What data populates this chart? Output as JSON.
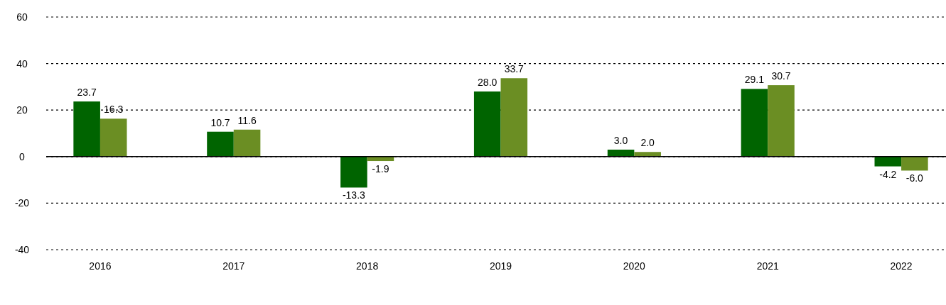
{
  "chart_data": {
    "type": "bar",
    "categories": [
      "2016",
      "2017",
      "2018",
      "2019",
      "2020",
      "2021",
      "2022"
    ],
    "series": [
      {
        "color": "#006400",
        "values": [
          23.7,
          10.7,
          -13.3,
          28.0,
          3.0,
          29.1,
          -4.2
        ],
        "value_labels": [
          "23.7",
          "10.7",
          "-13.3",
          "28.0",
          "3.0",
          "29.1",
          "-4.2"
        ]
      },
      {
        "color": "#6b8e23",
        "values": [
          16.3,
          11.6,
          -1.9,
          33.7,
          2.0,
          30.7,
          -6.0
        ],
        "value_labels": [
          "16.3",
          "11.6",
          "-1.9",
          "33.7",
          "2.0",
          "30.7",
          "-6.0"
        ]
      }
    ],
    "ylim": [
      -40,
      60
    ],
    "yticks": [
      -40,
      -20,
      0,
      20,
      40,
      60
    ],
    "grid": "y"
  }
}
